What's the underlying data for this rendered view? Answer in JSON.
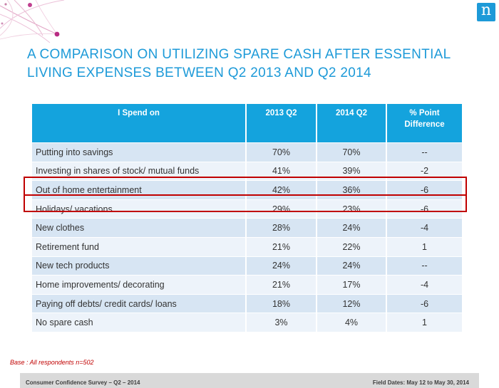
{
  "page": {
    "title": "A COMPARISON ON UTILIZING SPARE CASH AFTER ESSENTIAL LIVING EXPENSES BETWEEN Q2 2013 AND Q2 2014",
    "logo_letter": "n",
    "base_note": "Base : All respondents n=502",
    "footer_left": "Consumer Confidence Survey – Q2 – 2014",
    "footer_right": "Field Dates: May 12 to May 30, 2014"
  },
  "colors": {
    "title": "#1d9ad8",
    "header_bg": "#14a3dd",
    "row_dark": "#d7e5f3",
    "row_light": "#edf3fa",
    "highlight_border": "#c00000",
    "footer_bg": "#d9d9d9"
  },
  "table": {
    "headers": [
      "I Spend on",
      "2013 Q2",
      "2014 Q2",
      "% Point\nDifference"
    ],
    "rows": [
      [
        "Putting into savings",
        "70%",
        "70%",
        "--"
      ],
      [
        "Investing in shares of stock/ mutual funds",
        "41%",
        "39%",
        "-2"
      ],
      [
        "Out of home entertainment",
        "42%",
        "36%",
        "-6"
      ],
      [
        "Holidays/ vacations",
        "29%",
        "23%",
        "-6"
      ],
      [
        "New clothes",
        "28%",
        "24%",
        "-4"
      ],
      [
        "Retirement fund",
        "21%",
        "22%",
        "1"
      ],
      [
        "New tech products",
        "24%",
        "24%",
        "--"
      ],
      [
        "Home improvements/ decorating",
        "21%",
        "17%",
        "-4"
      ],
      [
        "Paying off debts/ credit cards/ loans",
        "18%",
        "12%",
        "-6"
      ],
      [
        "No spare cash",
        "3%",
        "4%",
        "1"
      ]
    ],
    "highlighted_rows": [
      2,
      3
    ]
  }
}
